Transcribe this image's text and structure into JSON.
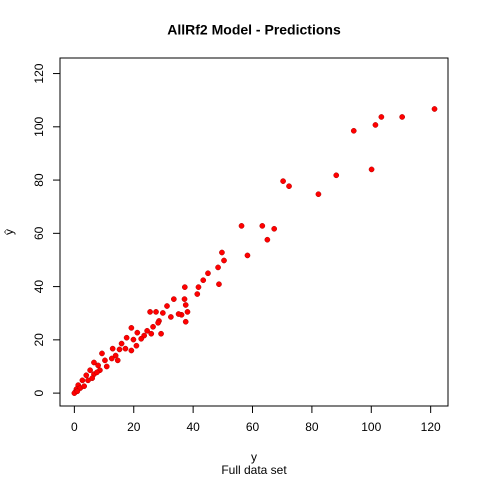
{
  "chart_data": {
    "type": "scatter",
    "title": "AllRf2 Model - Predictions",
    "xlabel": "y",
    "subtitle": "Full data set",
    "ylabel": "ŷ",
    "x": [
      121.3,
      110.4,
      103.4,
      101.4,
      94.1,
      100.1,
      88.2,
      82.2,
      70.3,
      72.3,
      56.3,
      63.3,
      67.3,
      65,
      58.3,
      49.7,
      50.4,
      48.4,
      45,
      43.4,
      48.7,
      41.8,
      41.4,
      37.2,
      37.1,
      33.5,
      31.2,
      37.5,
      38.1,
      36.1,
      37.5,
      35.1,
      29.8,
      25.5,
      27.5,
      28.5,
      26.5,
      28.2,
      24.5,
      23.5,
      29.2,
      21.2,
      19.2,
      19.9,
      17.6,
      15.9,
      15.2,
      12.9,
      13.9,
      9.3,
      10.3,
      6.6,
      8,
      10.9,
      5.3,
      4,
      2.7,
      1.3,
      0.7,
      0.3,
      2,
      4.6,
      6.6,
      8.6,
      12.6,
      17.2,
      22.5,
      32.5,
      0,
      1,
      3.3,
      6,
      7.6,
      14.6,
      19.2,
      20.9,
      25.9
    ],
    "values": [
      106.7,
      103.7,
      103.7,
      100.7,
      98.5,
      84,
      81.8,
      74.7,
      79.6,
      77.7,
      62.8,
      62.8,
      61.7,
      57.6,
      51.7,
      52.8,
      49.8,
      47.2,
      45,
      42.4,
      40.9,
      39.8,
      37.2,
      39.8,
      35.3,
      35.3,
      32.7,
      33.1,
      30.5,
      29.4,
      26.8,
      29.7,
      30.1,
      30.5,
      30.5,
      27.1,
      24.9,
      26.4,
      23.4,
      21.6,
      22.3,
      22.7,
      24.5,
      20.1,
      20.8,
      18.6,
      16.4,
      16.7,
      14.1,
      14.9,
      12.3,
      11.5,
      10.4,
      10,
      8.6,
      6.7,
      4.8,
      3,
      1.5,
      0.4,
      1.9,
      4.8,
      7.1,
      8.6,
      13,
      16.7,
      20.4,
      28.6,
      0,
      0.7,
      2.6,
      5.6,
      7.8,
      12.3,
      16,
      17.8,
      22.3
    ],
    "color": "#ff0000",
    "xlim": [
      -4.84,
      125.84
    ],
    "ylim": [
      -4.84,
      125.84
    ],
    "xticks": [
      0,
      20,
      40,
      60,
      80,
      100,
      120
    ],
    "yticks": [
      0,
      20,
      40,
      60,
      80,
      100,
      120
    ]
  }
}
